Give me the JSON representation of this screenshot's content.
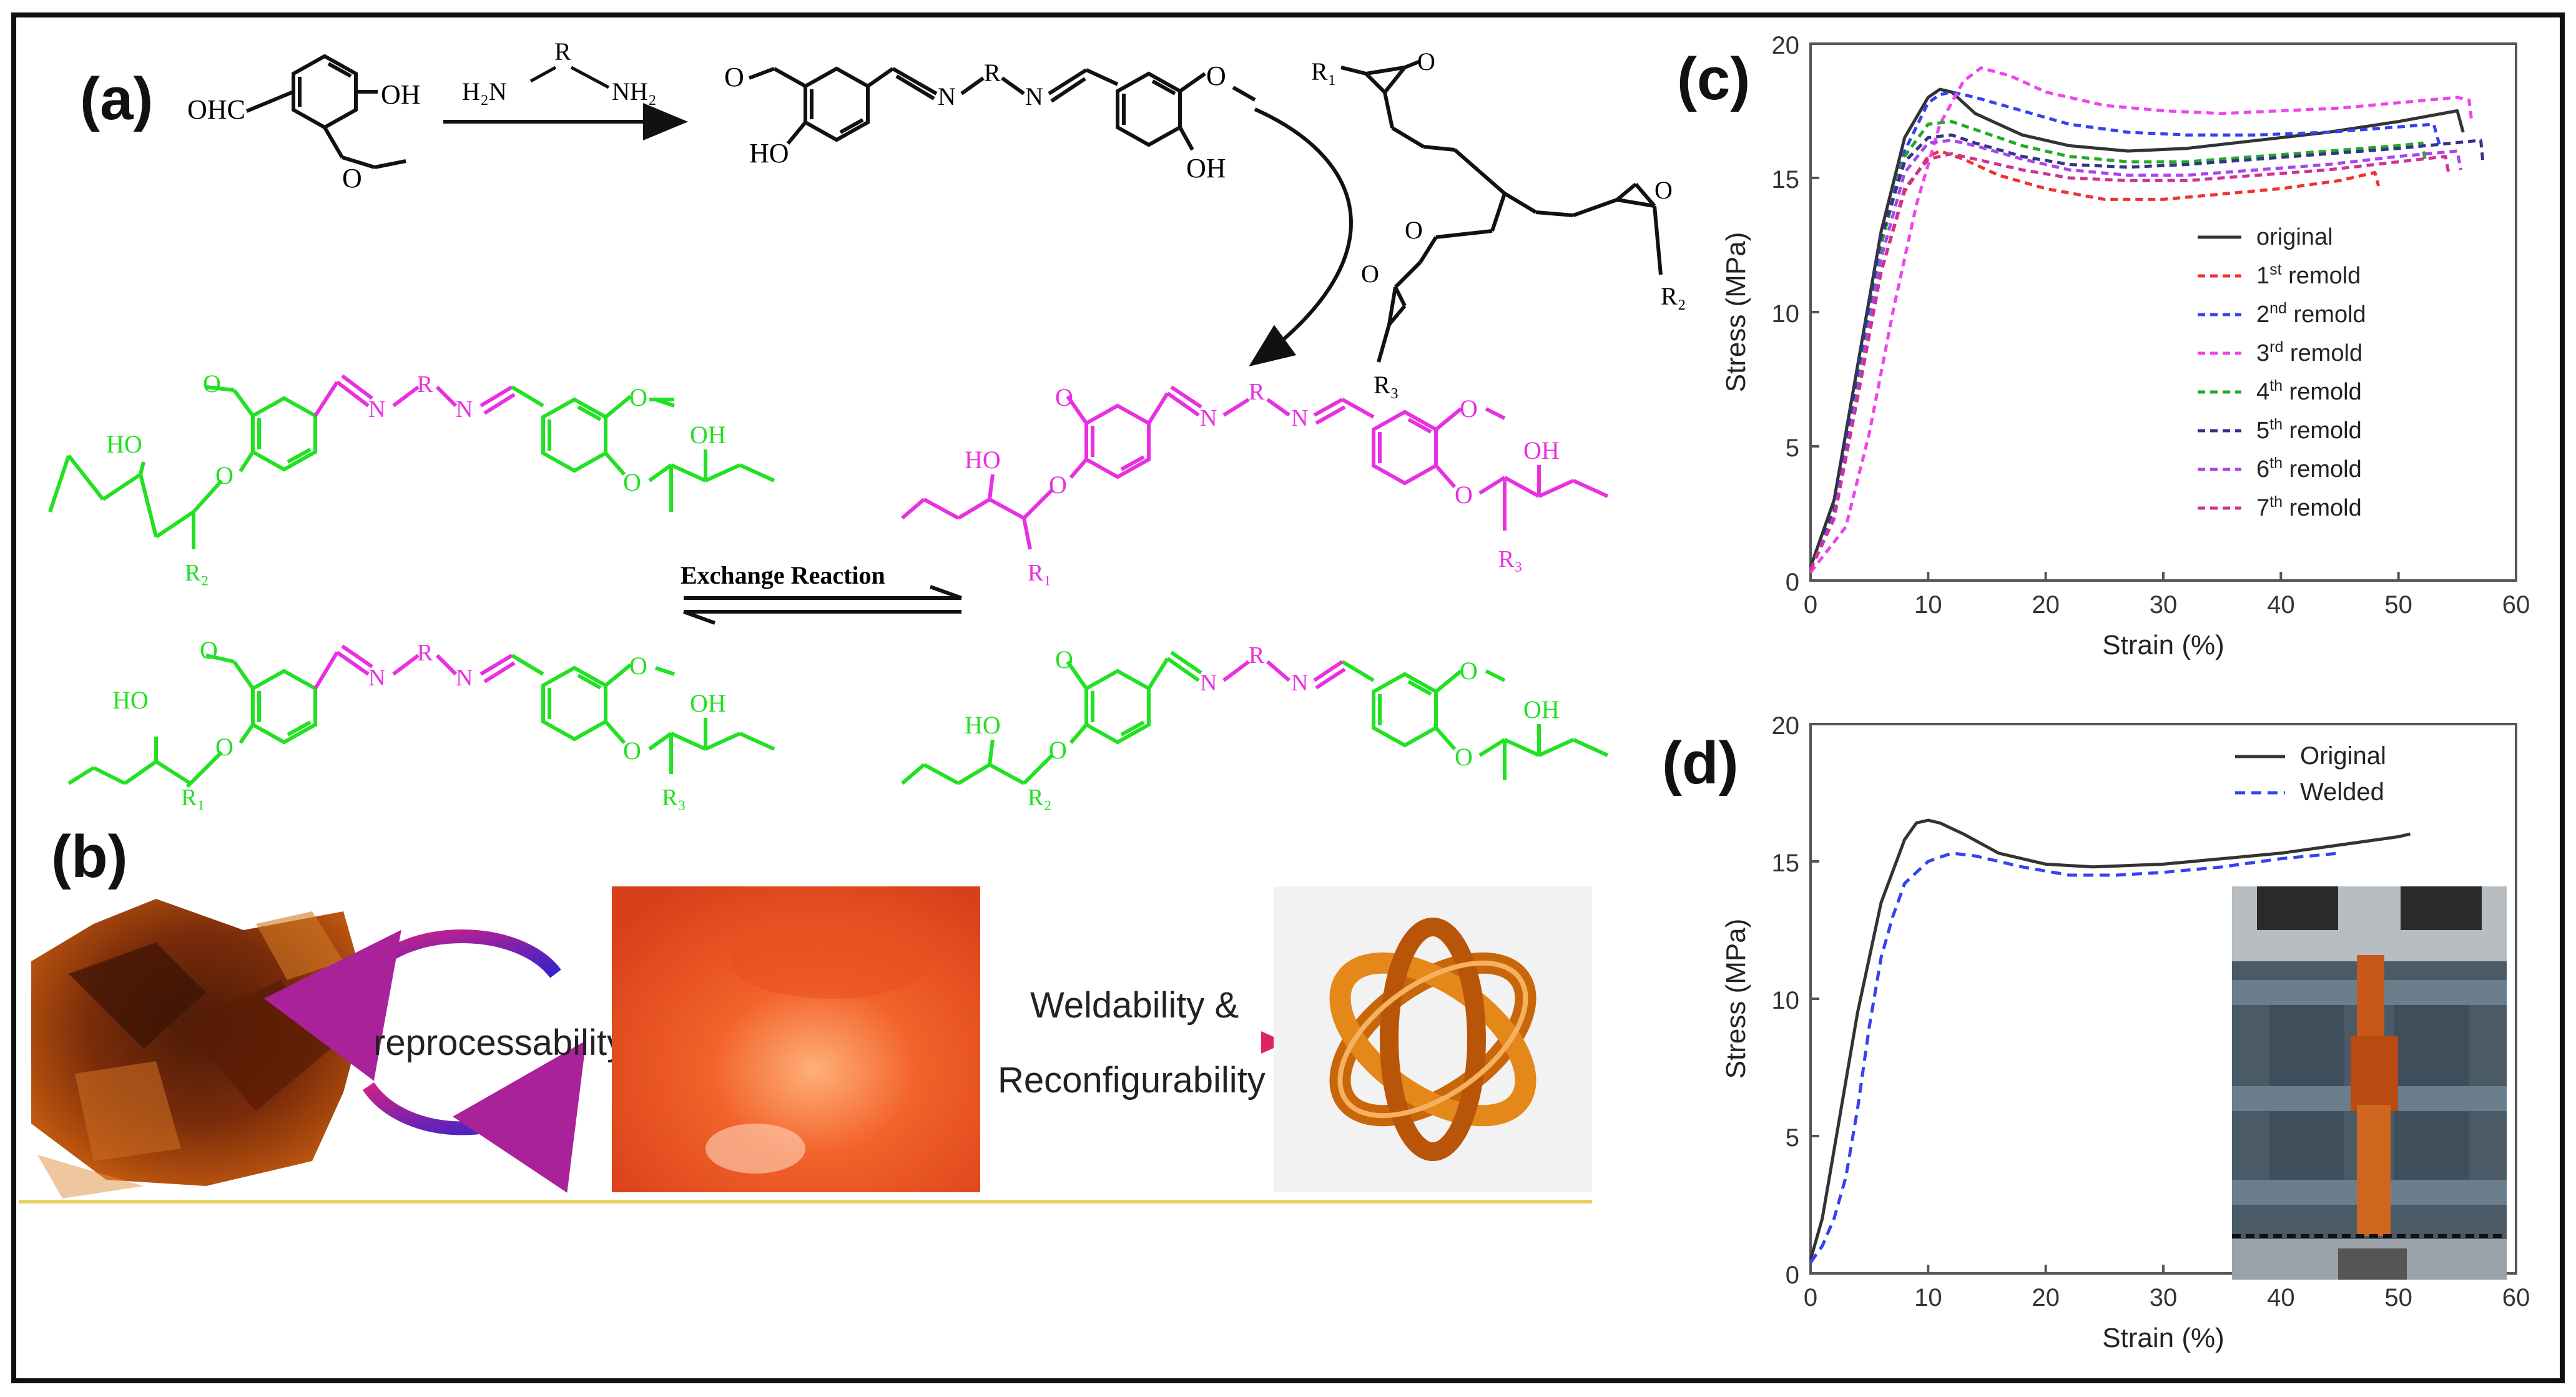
{
  "panels": {
    "a": {
      "label": "(a)",
      "reagents": {
        "aldehyde_cho": "OHC",
        "aldehyde_oh": "OH",
        "diamine_left": "H₂N",
        "diamine_r": "R",
        "diamine_right": "NH₂",
        "imine_n1": "N",
        "imine_n2": "N",
        "imine_r": "R",
        "ho": "HO",
        "oh": "OH",
        "o": "O",
        "epoxy_r1": "R₁",
        "epoxy_r2": "R₂",
        "epoxy_r3": "R₃"
      },
      "network": {
        "ho": "HO",
        "oh": "OH",
        "o": "O",
        "n": "N",
        "r": "R",
        "r1": "R₁",
        "r2": "R₂",
        "r3": "R₃"
      },
      "exchange_label": "Exchange Reaction",
      "colors": {
        "green": "#22e022",
        "magenta": "#e830e0",
        "black": "#111111"
      }
    },
    "b": {
      "label": "(b)",
      "reprocess_label": "reprocessability",
      "weld_label_1": "Weldability &",
      "weld_label_2": "Reconfigurability"
    },
    "c": {
      "label": "(c)"
    },
    "d": {
      "label": "(d)"
    }
  },
  "chart_data": [
    {
      "panel": "c",
      "type": "line",
      "title": "",
      "xlabel": "Strain (%)",
      "ylabel": "Stress (MPa)",
      "xlim": [
        0,
        60
      ],
      "ylim": [
        0,
        20
      ],
      "xticks": [
        0,
        10,
        20,
        30,
        40,
        50,
        60
      ],
      "yticks": [
        0,
        5,
        10,
        15,
        20
      ],
      "legend_position": "center-right",
      "series": [
        {
          "name": "original",
          "style": "solid",
          "color": "#333333",
          "x": [
            0,
            2,
            4,
            6,
            8,
            10,
            11,
            12,
            14,
            18,
            22,
            27,
            32,
            38,
            44,
            50,
            55,
            55.5
          ],
          "y": [
            0.5,
            3,
            8,
            13,
            16.5,
            18.0,
            18.3,
            18.2,
            17.4,
            16.6,
            16.2,
            16.0,
            16.1,
            16.4,
            16.7,
            17.1,
            17.5,
            16.7
          ]
        },
        {
          "name": "1st remold",
          "style": "dashed",
          "color": "#ee3333",
          "x": [
            0,
            2,
            4,
            6,
            8,
            10,
            11,
            13,
            16,
            20,
            25,
            30,
            35,
            40,
            45,
            48,
            48.3
          ],
          "y": [
            0.4,
            2.5,
            7,
            11.5,
            14.5,
            15.8,
            16.0,
            15.7,
            15.1,
            14.6,
            14.2,
            14.2,
            14.4,
            14.6,
            14.9,
            15.2,
            14.7
          ]
        },
        {
          "name": "2nd remold",
          "style": "dashed",
          "color": "#3344ee",
          "x": [
            0,
            2,
            4,
            6,
            8,
            10,
            11,
            12,
            14,
            18,
            22,
            27,
            32,
            38,
            44,
            50,
            53,
            53.5
          ],
          "y": [
            0.4,
            2.5,
            7.5,
            12.5,
            16,
            17.8,
            18.1,
            18.2,
            18.0,
            17.5,
            17.0,
            16.7,
            16.6,
            16.6,
            16.7,
            16.9,
            17.0,
            16.2
          ]
        },
        {
          "name": "3rd remold",
          "style": "dashed",
          "color": "#ee44ee",
          "x": [
            0,
            3,
            5,
            7,
            9,
            11,
            13,
            14.5,
            17,
            20,
            25,
            30,
            35,
            40,
            45,
            50,
            55,
            56,
            56.2
          ],
          "y": [
            0.3,
            2,
            5.5,
            10,
            14,
            17,
            18.6,
            19.1,
            18.8,
            18.2,
            17.7,
            17.5,
            17.4,
            17.5,
            17.6,
            17.8,
            18.0,
            17.9,
            17.2
          ]
        },
        {
          "name": "4th remold",
          "style": "dashed",
          "color": "#22aa22",
          "x": [
            0,
            2,
            4,
            6,
            8,
            10,
            12,
            14,
            18,
            22,
            27,
            32,
            38,
            44,
            50,
            52,
            52.3
          ],
          "y": [
            0.4,
            2.5,
            7.5,
            12.5,
            15.8,
            17.0,
            17.1,
            16.8,
            16.2,
            15.8,
            15.6,
            15.6,
            15.8,
            16.0,
            16.2,
            16.3,
            15.6
          ]
        },
        {
          "name": "5th remold",
          "style": "dashed",
          "color": "#333388",
          "x": [
            0,
            2,
            4,
            6,
            8,
            10,
            12,
            14,
            18,
            22,
            27,
            32,
            38,
            44,
            50,
            57,
            57.2
          ],
          "y": [
            0.4,
            2.6,
            7.8,
            12.8,
            15.6,
            16.5,
            16.6,
            16.3,
            15.8,
            15.5,
            15.4,
            15.5,
            15.7,
            15.9,
            16.1,
            16.4,
            15.5
          ]
        },
        {
          "name": "6th remold",
          "style": "dashed",
          "color": "#aa44ee",
          "x": [
            0,
            2,
            4,
            6,
            8,
            10,
            12,
            14,
            18,
            22,
            27,
            32,
            38,
            44,
            50,
            55,
            55.3
          ],
          "y": [
            0.4,
            2.4,
            7,
            12,
            15.2,
            16.3,
            16.4,
            16.2,
            15.7,
            15.3,
            15.1,
            15.1,
            15.3,
            15.5,
            15.8,
            16.0,
            15.3
          ]
        },
        {
          "name": "7th remold",
          "style": "dashed",
          "color": "#cc3399",
          "x": [
            0,
            2,
            4,
            6,
            8,
            10,
            12,
            14,
            18,
            22,
            27,
            32,
            38,
            44,
            50,
            54,
            54.3
          ],
          "y": [
            0.4,
            2.3,
            6.8,
            11.5,
            14.6,
            15.7,
            15.9,
            15.7,
            15.3,
            15.0,
            14.9,
            14.9,
            15.1,
            15.3,
            15.6,
            15.8,
            15.1
          ]
        }
      ]
    },
    {
      "panel": "d",
      "type": "line",
      "title": "",
      "xlabel": "Strain (%)",
      "ylabel": "Stress (MPa)",
      "xlim": [
        0,
        60
      ],
      "ylim": [
        0,
        20
      ],
      "xticks": [
        0,
        10,
        20,
        30,
        40,
        50,
        60
      ],
      "yticks": [
        0,
        5,
        10,
        15,
        20
      ],
      "legend_position": "top-right",
      "series": [
        {
          "name": "Original",
          "style": "solid",
          "color": "#333333",
          "x": [
            0,
            1,
            2,
            4,
            6,
            8,
            9,
            10,
            11,
            13,
            16,
            20,
            24,
            30,
            35,
            40,
            45,
            50,
            51
          ],
          "y": [
            0.5,
            2,
            4.5,
            9.5,
            13.5,
            15.8,
            16.4,
            16.5,
            16.4,
            16.0,
            15.3,
            14.9,
            14.8,
            14.9,
            15.1,
            15.3,
            15.6,
            15.9,
            16.0
          ]
        },
        {
          "name": "Welded",
          "style": "dashed",
          "color": "#3344ee",
          "x": [
            0,
            1,
            2,
            3,
            4,
            5,
            6,
            7,
            8,
            10,
            12,
            14,
            18,
            22,
            26,
            30,
            35,
            40,
            45
          ],
          "y": [
            0.4,
            1,
            2,
            3.5,
            6,
            9,
            11.5,
            13,
            14.2,
            15.0,
            15.3,
            15.2,
            14.8,
            14.5,
            14.5,
            14.6,
            14.8,
            15.1,
            15.3
          ]
        }
      ]
    }
  ]
}
